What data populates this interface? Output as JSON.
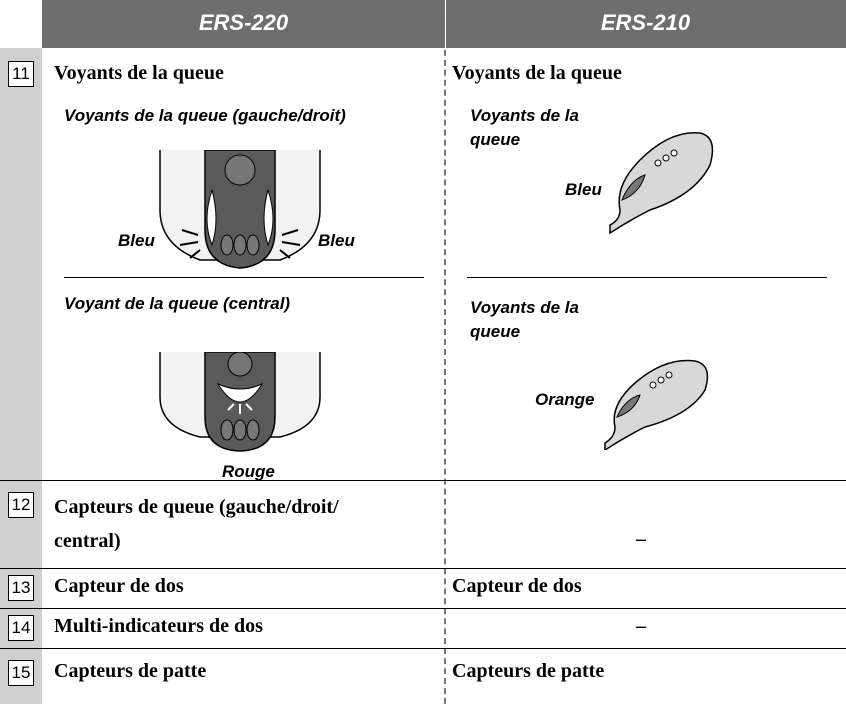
{
  "header": {
    "columns": [
      "ERS-220",
      "ERS-210"
    ]
  },
  "rows": [
    {
      "number": "11",
      "ers220": "Voyants de la queue",
      "ers210": "Voyants de la queue"
    },
    {
      "number": "12",
      "ers220": "Capteurs de queue (gauche/droit/ central)",
      "ers210": "–"
    },
    {
      "number": "13",
      "ers220": "Capteur de dos",
      "ers210": "Capteur de dos"
    },
    {
      "number": "14",
      "ers220": "Multi-indicateurs de dos",
      "ers210": "–"
    },
    {
      "number": "15",
      "ers220": "Capteurs de patte",
      "ers210": "Capteurs de patte"
    }
  ],
  "row11_details": {
    "ers220": [
      {
        "caption": "Voyants de la queue (gauche/droit)",
        "labels": [
          "Bleu",
          "Bleu"
        ]
      },
      {
        "caption": "Voyant de la queue (central)",
        "labels": [
          "Rouge"
        ]
      }
    ],
    "ers210": [
      {
        "caption": "Voyants de la queue",
        "labels": [
          "Bleu"
        ]
      },
      {
        "caption": "Voyants de la queue",
        "labels": [
          "Orange"
        ]
      }
    ]
  }
}
